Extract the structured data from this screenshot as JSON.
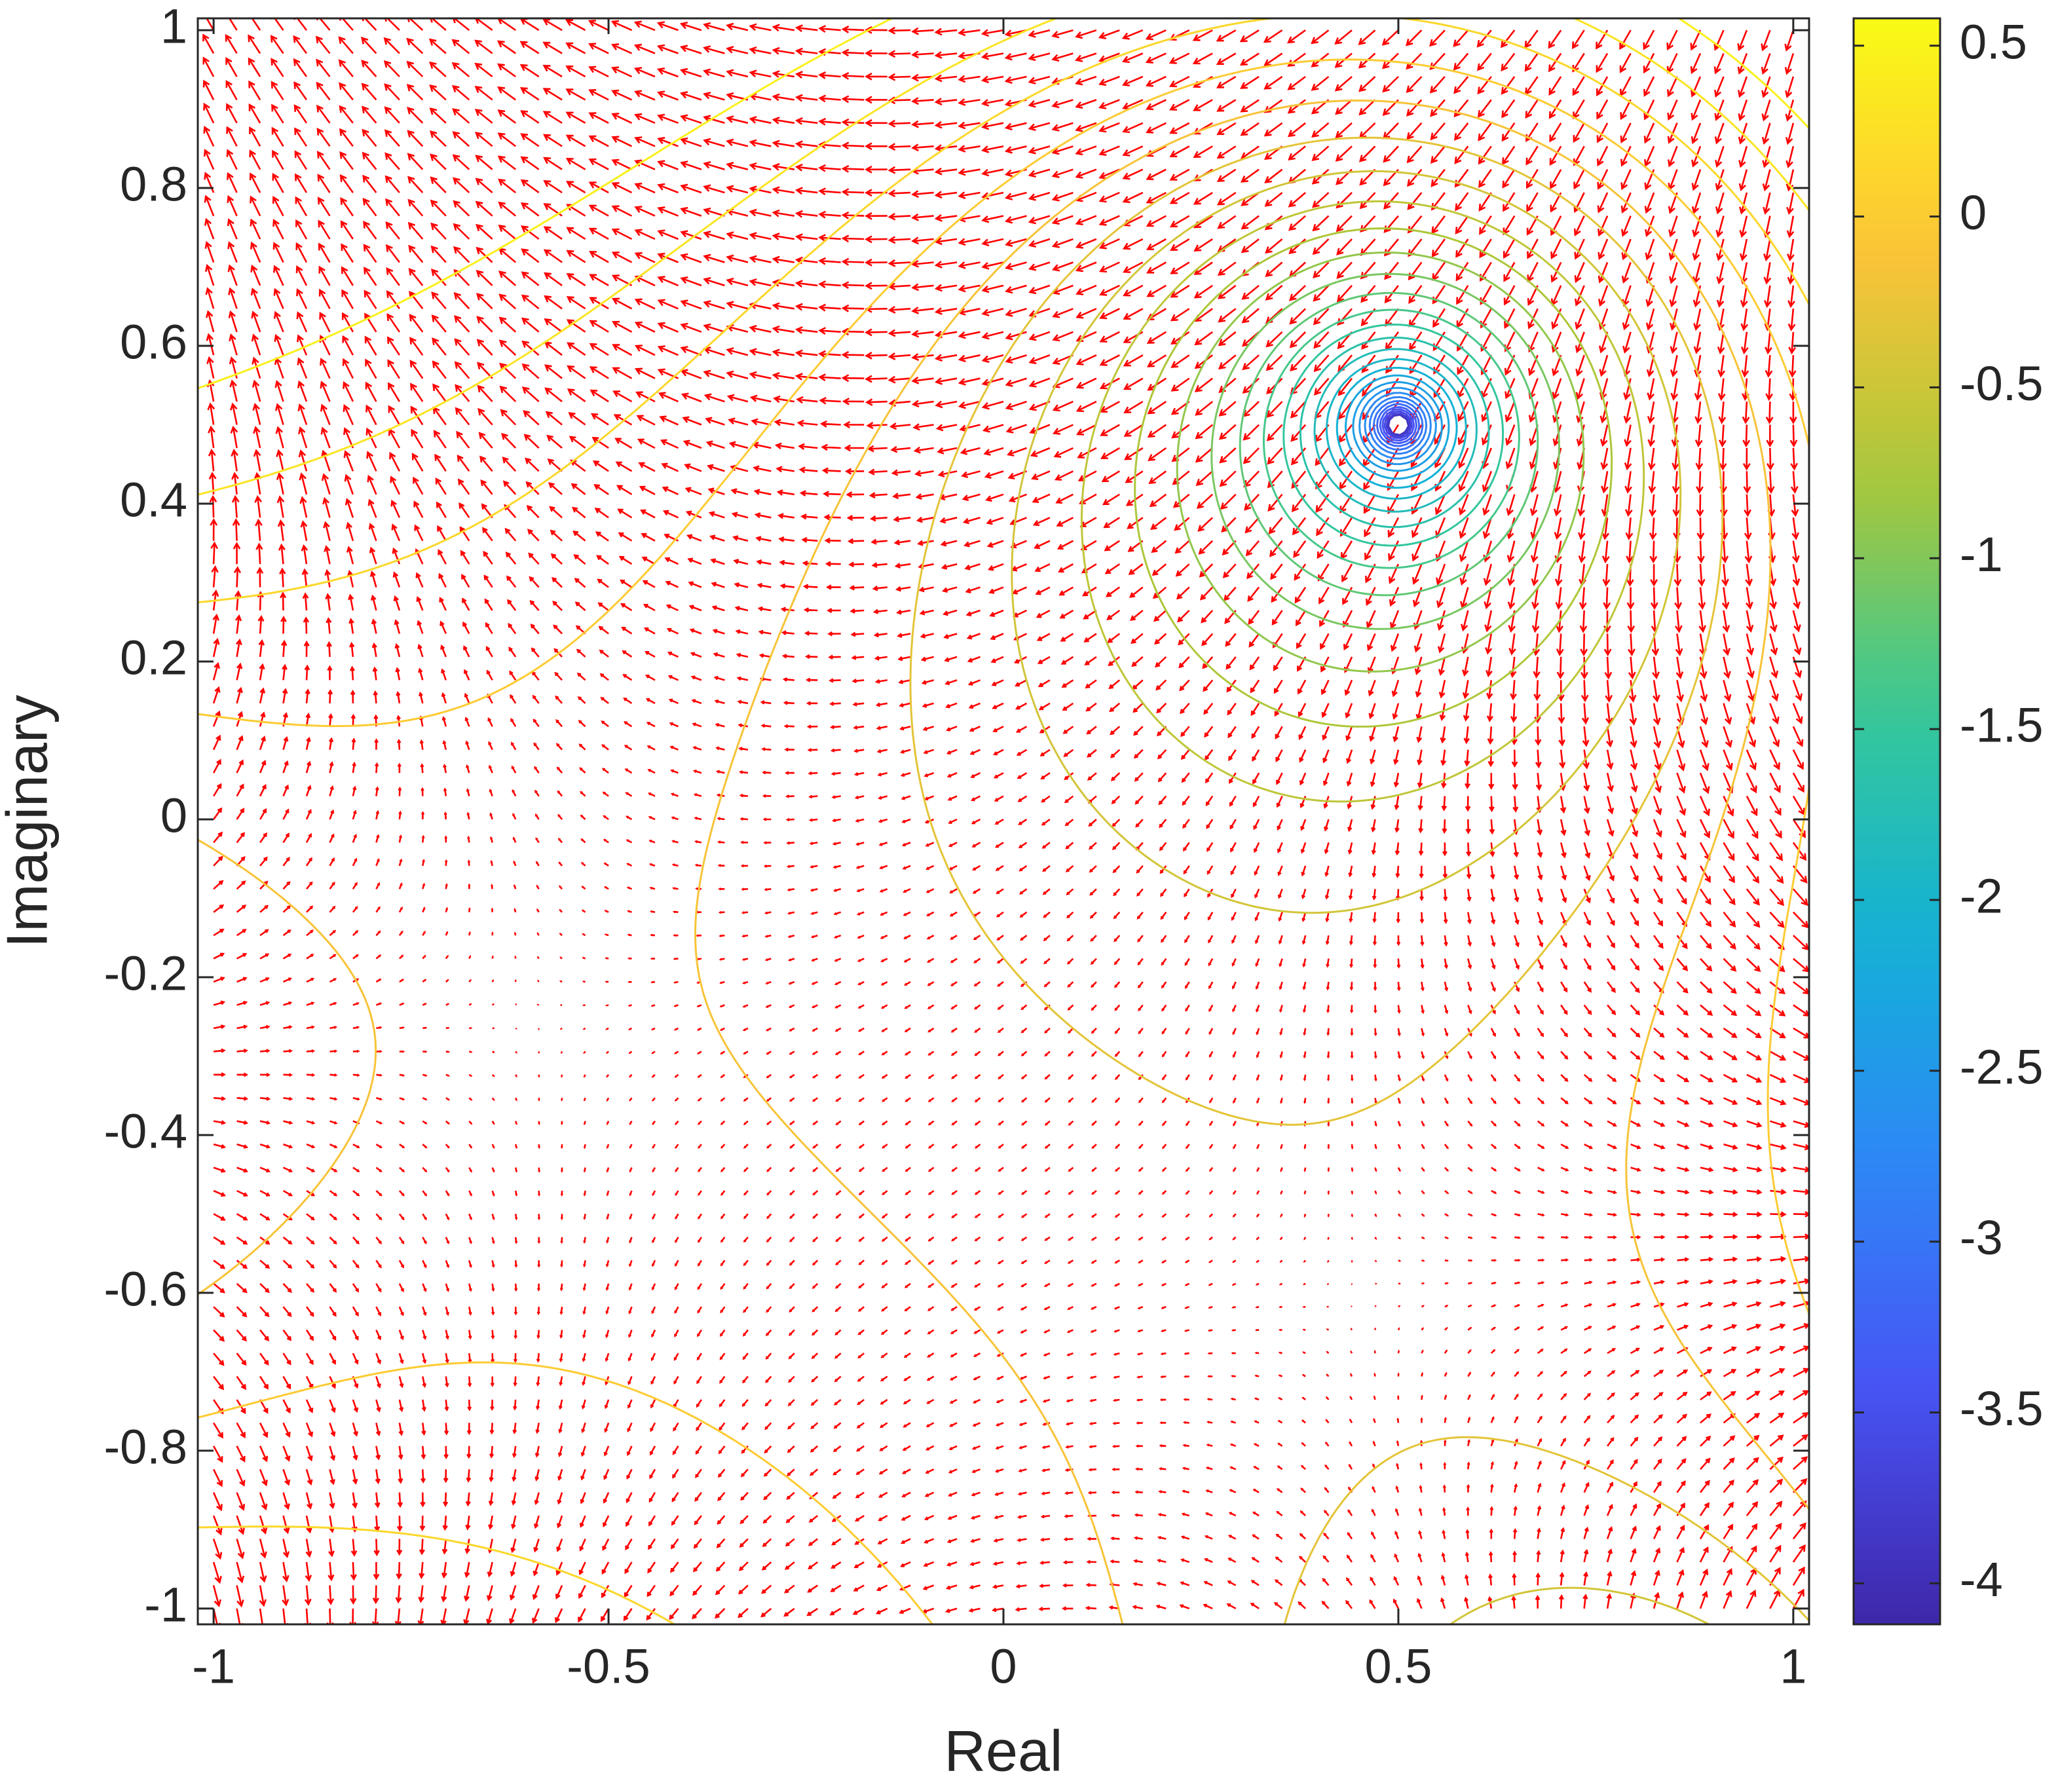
{
  "chart_data": {
    "type": "contour",
    "xlabel": "Real",
    "ylabel": "Imaginary",
    "xlim": [
      -1.02,
      1.02
    ],
    "ylim": [
      -1.02,
      1.015
    ],
    "xticks": [
      -1,
      -0.5,
      0,
      0.5,
      1
    ],
    "yticks": [
      -1,
      -0.8,
      -0.6,
      -0.4,
      -0.2,
      0,
      0.2,
      0.4,
      0.6,
      0.8,
      1
    ],
    "levels": [
      -3.9,
      -3.75,
      -3.6,
      -3.45,
      -3.3,
      -3.15,
      -3,
      -2.85,
      -2.7,
      -2.55,
      -2.4,
      -2.25,
      -2.1,
      -1.95,
      -1.8,
      -1.65,
      -1.5,
      -1.35,
      -1.2,
      -1.05,
      -0.9,
      -0.75,
      -0.6,
      -0.45,
      -0.3,
      -0.15,
      0,
      0.15,
      0.3,
      0.45
    ],
    "colorbar": {
      "clim": [
        -4.12,
        0.58
      ],
      "ticks": [
        -4,
        -3.5,
        -3,
        -2.5,
        -2,
        -1.5,
        -1,
        -0.5,
        0,
        0.5
      ]
    },
    "quiver_color": "#ff0000"
  }
}
